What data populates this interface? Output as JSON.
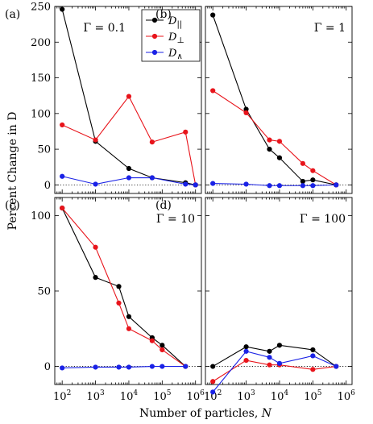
{
  "figure": {
    "ylabel": "Percent Change in D",
    "xlabel_text": "Number of particles, ",
    "xlabel_symbol": "N"
  },
  "legend": {
    "entries": [
      {
        "symbol": "D",
        "sub": "||",
        "color": "#000000"
      },
      {
        "symbol": "D",
        "sub": "⊥",
        "color": "#e8141b"
      },
      {
        "symbol": "D",
        "sub": "∧",
        "color": "#1a22e6"
      }
    ]
  },
  "colors": {
    "parallel": "#000000",
    "perp": "#e8141b",
    "wedge": "#1a22e6"
  },
  "chart_data": [
    {
      "type": "line",
      "panel": "(a)",
      "annotation": "Γ = 0.1",
      "xscale": "log",
      "xlim": [
        60,
        1500000
      ],
      "ylim": [
        -12,
        250
      ],
      "yticks": [
        0,
        50,
        100,
        150,
        200,
        250
      ],
      "zero_line": true,
      "series": [
        {
          "name": "D||",
          "key": "parallel",
          "x": [
            100,
            1000,
            10000,
            50000,
            500000,
            1000000
          ],
          "values": [
            246,
            61,
            23,
            10,
            3,
            0
          ]
        },
        {
          "name": "D⊥",
          "key": "perp",
          "x": [
            100,
            1000,
            10000,
            50000,
            500000,
            1000000
          ],
          "values": [
            84,
            63,
            124,
            60,
            74,
            0
          ]
        },
        {
          "name": "D∧",
          "key": "wedge",
          "x": [
            100,
            1000,
            10000,
            50000,
            500000,
            1000000
          ],
          "values": [
            12,
            1,
            10,
            10,
            1,
            0
          ]
        }
      ]
    },
    {
      "type": "line",
      "panel": "(b)",
      "annotation": "Γ = 1",
      "xscale": "log",
      "xlim": [
        60,
        1500000
      ],
      "ylim": [
        -12,
        250
      ],
      "yticks": [],
      "zero_line": true,
      "series": [
        {
          "name": "D||",
          "key": "parallel",
          "x": [
            100,
            1000,
            5000,
            10000,
            50000,
            100000,
            500000
          ],
          "values": [
            238,
            106,
            50,
            38,
            5,
            7,
            0
          ]
        },
        {
          "name": "D⊥",
          "key": "perp",
          "x": [
            100,
            1000,
            5000,
            10000,
            50000,
            100000,
            500000
          ],
          "values": [
            132,
            101,
            63,
            61,
            30,
            20,
            0
          ]
        },
        {
          "name": "D∧",
          "key": "wedge",
          "x": [
            100,
            1000,
            5000,
            10000,
            50000,
            100000,
            500000
          ],
          "values": [
            2,
            1,
            -1,
            -1,
            -1,
            -1,
            0
          ]
        }
      ]
    },
    {
      "type": "line",
      "panel": "(c)",
      "annotation": "Γ = 10",
      "xscale": "log",
      "xlim": [
        60,
        1500000
      ],
      "ylim": [
        -12,
        112
      ],
      "yticks": [
        0,
        50,
        100
      ],
      "zero_line": true,
      "series": [
        {
          "name": "D||",
          "key": "parallel",
          "x": [
            100,
            1000,
            5000,
            10000,
            50000,
            100000,
            500000
          ],
          "values": [
            105,
            59,
            53,
            33,
            19,
            14,
            0
          ]
        },
        {
          "name": "D⊥",
          "key": "perp",
          "x": [
            100,
            1000,
            5000,
            10000,
            50000,
            100000,
            500000
          ],
          "values": [
            105,
            79,
            42,
            25,
            17,
            11,
            0
          ]
        },
        {
          "name": "D∧",
          "key": "wedge",
          "x": [
            100,
            1000,
            5000,
            10000,
            50000,
            100000,
            500000
          ],
          "values": [
            -1,
            -0.5,
            -0.5,
            -0.5,
            0,
            0,
            0
          ]
        }
      ]
    },
    {
      "type": "line",
      "panel": "(d)",
      "annotation": "Γ = 100",
      "xscale": "log",
      "xlim": [
        60,
        1500000
      ],
      "ylim": [
        -12,
        112
      ],
      "yticks": [],
      "zero_line": true,
      "series": [
        {
          "name": "D||",
          "key": "parallel",
          "x": [
            100,
            1000,
            5000,
            10000,
            100000,
            500000
          ],
          "values": [
            0,
            13,
            10,
            14,
            11,
            0
          ]
        },
        {
          "name": "D⊥",
          "key": "perp",
          "x": [
            100,
            1000,
            5000,
            10000,
            100000,
            500000
          ],
          "values": [
            -10,
            4,
            1,
            1,
            -2,
            0
          ]
        },
        {
          "name": "D∧",
          "key": "wedge",
          "x": [
            100,
            1000,
            5000,
            10000,
            100000,
            500000
          ],
          "values": [
            -17,
            10,
            6,
            2,
            7,
            0
          ]
        }
      ]
    }
  ],
  "xaxis": {
    "ticks": [
      100,
      1000,
      10000,
      100000,
      1000000
    ],
    "tick_labels": [
      {
        "base": "10",
        "exp": "2"
      },
      {
        "base": "10",
        "exp": "3"
      },
      {
        "base": "10",
        "exp": "4"
      },
      {
        "base": "10",
        "exp": "5"
      },
      {
        "base": "10",
        "exp": "6"
      }
    ]
  }
}
